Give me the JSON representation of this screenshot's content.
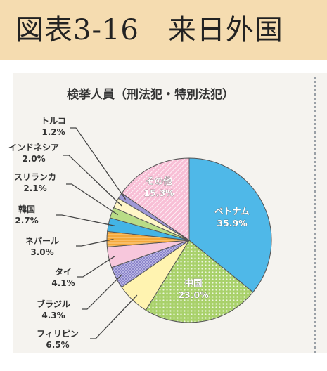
{
  "header": {
    "title": "図表3-16　来日外国"
  },
  "chart_data": {
    "type": "pie",
    "title": "検挙人員（刑法犯・特別法犯）",
    "slices": [
      {
        "label": "ベトナム",
        "value": 35.9,
        "value_label": "35.9%",
        "color": "#4fb8e8"
      },
      {
        "label": "中国",
        "value": 23.0,
        "value_label": "23.0%",
        "color": "#a9d16b"
      },
      {
        "label": "フィリピン",
        "value": 6.5,
        "value_label": "6.5%",
        "color": "#fff3b0"
      },
      {
        "label": "ブラジル",
        "value": 4.3,
        "value_label": "4.3%",
        "color": "#8a84c9"
      },
      {
        "label": "タイ",
        "value": 4.1,
        "value_label": "4.1%",
        "color": "#f7c7dc"
      },
      {
        "label": "ネパール",
        "value": 3.0,
        "value_label": "3.0%",
        "color": "#f4a83a"
      },
      {
        "label": "韓国",
        "value": 2.7,
        "value_label": "2.7%",
        "color": "#43b4e6"
      },
      {
        "label": "スリランカ",
        "value": 2.1,
        "value_label": "2.1%",
        "color": "#b9dc86"
      },
      {
        "label": "インドネシア",
        "value": 2.0,
        "value_label": "2.0%",
        "color": "#fff6c7"
      },
      {
        "label": "トルコ",
        "value": 1.2,
        "value_label": "1.2%",
        "color": "#9e98d6"
      },
      {
        "label": "その他",
        "value": 15.3,
        "value_label": "15.3%",
        "color": "#f8bfd6"
      }
    ]
  }
}
